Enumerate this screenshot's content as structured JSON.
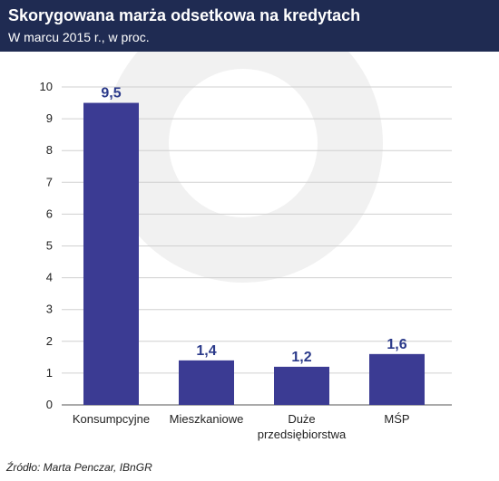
{
  "header": {
    "title": "Skorygowana marża odsetkowa na kredytach",
    "subtitle": "W marcu 2015 r., w proc."
  },
  "footer": {
    "source": "Źródło: Marta Penczar, IBnGR"
  },
  "colors": {
    "header_bg": "#1f2b52",
    "bar": "#3b3b93",
    "data_label": "#2b3a8a",
    "grid": "#d0d0d0",
    "watermark": "#f1f1f1"
  },
  "chart_data": {
    "type": "bar",
    "title": "Skorygowana marża odsetkowa na kredytach",
    "subtitle": "W marcu 2015 r., w proc.",
    "xlabel": "",
    "ylabel": "",
    "categories": [
      [
        "Konsumpcyjne"
      ],
      [
        "Mieszkaniowe"
      ],
      [
        "Duże",
        "przedsiębiorstwa"
      ],
      [
        "MŚP"
      ]
    ],
    "values": [
      9.5,
      1.4,
      1.2,
      1.6
    ],
    "data_labels": [
      "9,5",
      "1,4",
      "1,2",
      "1,6"
    ],
    "ylim": [
      0,
      10
    ],
    "yticks": [
      0,
      1,
      2,
      3,
      4,
      5,
      6,
      7,
      8,
      9,
      10
    ],
    "ytick_labels": [
      "0",
      "1",
      "2",
      "3",
      "4",
      "5",
      "6",
      "7",
      "8",
      "9",
      "10"
    ],
    "grid": true,
    "legend": "none"
  }
}
